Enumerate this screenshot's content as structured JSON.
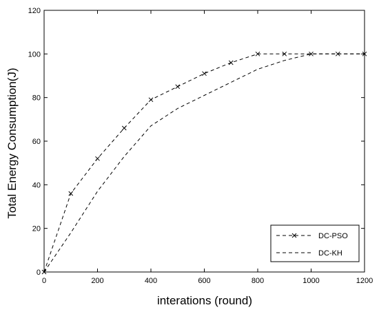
{
  "chart_data": {
    "type": "line",
    "title": "",
    "xlabel": "interations (round)",
    "ylabel": "Total Energy Consumption(J)",
    "xlim": [
      0,
      1200
    ],
    "ylim": [
      0,
      120
    ],
    "xticks": [
      0,
      200,
      400,
      600,
      800,
      1000,
      1200
    ],
    "yticks": [
      0,
      20,
      40,
      60,
      80,
      100,
      120
    ],
    "grid": false,
    "legend_position": "bottom-right",
    "series": [
      {
        "name": "DC-PSO",
        "line_style": "dashed",
        "marker": "x",
        "color": "#000000",
        "x": [
          0,
          100,
          200,
          300,
          400,
          500,
          600,
          700,
          800,
          900,
          1000,
          1100,
          1200
        ],
        "y": [
          0,
          36,
          52,
          66,
          79,
          85,
          91,
          96,
          100,
          100,
          100,
          100,
          100
        ]
      },
      {
        "name": "DC-KH",
        "line_style": "dashed",
        "marker": "none",
        "color": "#000000",
        "x": [
          0,
          100,
          200,
          300,
          400,
          500,
          600,
          700,
          800,
          900,
          1000,
          1100,
          1200
        ],
        "y": [
          0,
          18,
          37,
          53,
          67,
          75,
          81,
          87,
          93,
          97,
          100,
          100,
          100
        ]
      }
    ]
  }
}
